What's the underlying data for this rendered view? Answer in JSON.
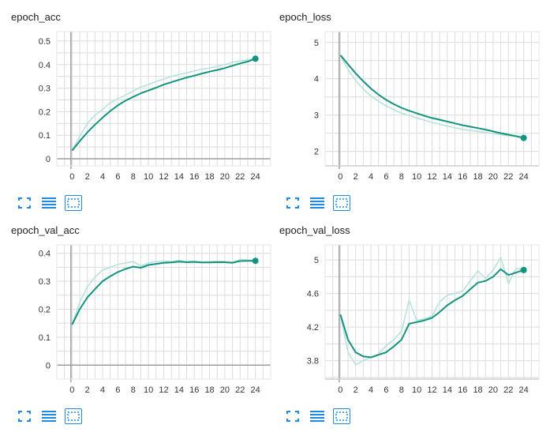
{
  "colors": {
    "line": "#12937f",
    "line_light": "#b2e2d9",
    "grid": "#dcdcdc",
    "axis": "#9e9e9e",
    "icon": "#1e88e5"
  },
  "toolbar_icons": [
    "fit-to-screen-icon",
    "toggle-log-scale-icon",
    "fit-domain-icon"
  ],
  "charts": [
    {
      "title": "epoch_acc",
      "chart_data": {
        "type": "line",
        "x": [
          0,
          1,
          2,
          3,
          4,
          5,
          6,
          7,
          8,
          9,
          10,
          11,
          12,
          13,
          14,
          15,
          16,
          17,
          18,
          19,
          20,
          21,
          22,
          23,
          24
        ],
        "xticks": [
          0,
          2,
          4,
          6,
          8,
          10,
          12,
          14,
          16,
          18,
          20,
          22,
          24
        ],
        "yticks": [
          0,
          0.1,
          0.2,
          0.3,
          0.4,
          0.5
        ],
        "xlim": [
          -2,
          26
        ],
        "ylim": [
          -0.03,
          0.54
        ],
        "series": [
          {
            "values": [
              0.035,
              0.095,
              0.15,
              0.185,
              0.21,
              0.238,
              0.255,
              0.27,
              0.288,
              0.305,
              0.315,
              0.328,
              0.338,
              0.35,
              0.358,
              0.365,
              0.373,
              0.38,
              0.385,
              0.392,
              0.4,
              0.41,
              0.415,
              0.42,
              0.425
            ]
          },
          {
            "values": [
              0.035,
              0.075,
              0.112,
              0.145,
              0.175,
              0.203,
              0.227,
              0.247,
              0.263,
              0.278,
              0.29,
              0.302,
              0.315,
              0.325,
              0.335,
              0.345,
              0.353,
              0.362,
              0.37,
              0.377,
              0.385,
              0.395,
              0.405,
              0.413,
              0.425
            ]
          }
        ]
      }
    },
    {
      "title": "epoch_loss",
      "chart_data": {
        "type": "line",
        "x": [
          0,
          1,
          2,
          3,
          4,
          5,
          6,
          7,
          8,
          9,
          10,
          11,
          12,
          13,
          14,
          15,
          16,
          17,
          18,
          19,
          20,
          21,
          22,
          23,
          24
        ],
        "xticks": [
          0,
          2,
          4,
          6,
          8,
          10,
          12,
          14,
          16,
          18,
          20,
          22,
          24
        ],
        "yticks": [
          2,
          3,
          4,
          5
        ],
        "xlim": [
          -2,
          26
        ],
        "ylim": [
          1.6,
          5.3
        ],
        "series": [
          {
            "values": [
              4.65,
              4.25,
              3.95,
              3.72,
              3.52,
              3.38,
              3.25,
              3.15,
              3.05,
              2.99,
              2.92,
              2.86,
              2.8,
              2.75,
              2.7,
              2.65,
              2.61,
              2.58,
              2.55,
              2.52,
              2.49,
              2.46,
              2.43,
              2.4,
              2.36
            ]
          },
          {
            "values": [
              4.65,
              4.4,
              4.15,
              3.93,
              3.73,
              3.56,
              3.42,
              3.3,
              3.2,
              3.12,
              3.05,
              2.98,
              2.92,
              2.87,
              2.82,
              2.77,
              2.72,
              2.68,
              2.64,
              2.6,
              2.55,
              2.5,
              2.46,
              2.42,
              2.37
            ]
          }
        ]
      }
    },
    {
      "title": "epoch_val_acc",
      "chart_data": {
        "type": "line",
        "x": [
          0,
          1,
          2,
          3,
          4,
          5,
          6,
          7,
          8,
          9,
          10,
          11,
          12,
          13,
          14,
          15,
          16,
          17,
          18,
          19,
          20,
          21,
          22,
          23,
          24
        ],
        "xticks": [
          0,
          2,
          4,
          6,
          8,
          10,
          12,
          14,
          16,
          18,
          20,
          22,
          24
        ],
        "yticks": [
          0,
          0.1,
          0.2,
          0.3,
          0.4
        ],
        "xlim": [
          -2,
          26
        ],
        "ylim": [
          -0.05,
          0.43
        ],
        "series": [
          {
            "values": [
              0.145,
              0.225,
              0.28,
              0.315,
              0.34,
              0.35,
              0.36,
              0.365,
              0.37,
              0.355,
              0.365,
              0.37,
              0.372,
              0.37,
              0.375,
              0.37,
              0.372,
              0.368,
              0.37,
              0.372,
              0.37,
              0.368,
              0.378,
              0.376,
              0.374
            ]
          },
          {
            "values": [
              0.145,
              0.2,
              0.242,
              0.272,
              0.3,
              0.318,
              0.333,
              0.344,
              0.352,
              0.348,
              0.358,
              0.362,
              0.366,
              0.367,
              0.37,
              0.368,
              0.369,
              0.367,
              0.367,
              0.368,
              0.368,
              0.366,
              0.372,
              0.373,
              0.373
            ]
          }
        ]
      }
    },
    {
      "title": "epoch_val_loss",
      "chart_data": {
        "type": "line",
        "x": [
          0,
          1,
          2,
          3,
          4,
          5,
          6,
          7,
          8,
          9,
          10,
          11,
          12,
          13,
          14,
          15,
          16,
          17,
          18,
          19,
          20,
          21,
          22,
          23,
          24
        ],
        "xticks": [
          0,
          2,
          4,
          6,
          8,
          10,
          12,
          14,
          16,
          18,
          20,
          22,
          24
        ],
        "yticks": [
          3.8,
          4.2,
          4.6,
          5
        ],
        "xlim": [
          -2,
          26
        ],
        "ylim": [
          3.58,
          5.18
        ],
        "series": [
          {
            "values": [
              4.35,
              3.9,
              3.75,
              3.8,
              3.84,
              3.88,
              3.98,
              4.05,
              4.15,
              4.52,
              4.28,
              4.3,
              4.33,
              4.5,
              4.58,
              4.6,
              4.63,
              4.75,
              4.87,
              4.78,
              4.88,
              5.03,
              4.72,
              4.9,
              4.88
            ]
          },
          {
            "values": [
              4.35,
              4.05,
              3.9,
              3.85,
              3.84,
              3.87,
              3.9,
              3.97,
              4.05,
              4.24,
              4.26,
              4.28,
              4.31,
              4.38,
              4.46,
              4.52,
              4.57,
              4.65,
              4.73,
              4.75,
              4.8,
              4.89,
              4.82,
              4.85,
              4.88
            ]
          }
        ]
      }
    }
  ]
}
